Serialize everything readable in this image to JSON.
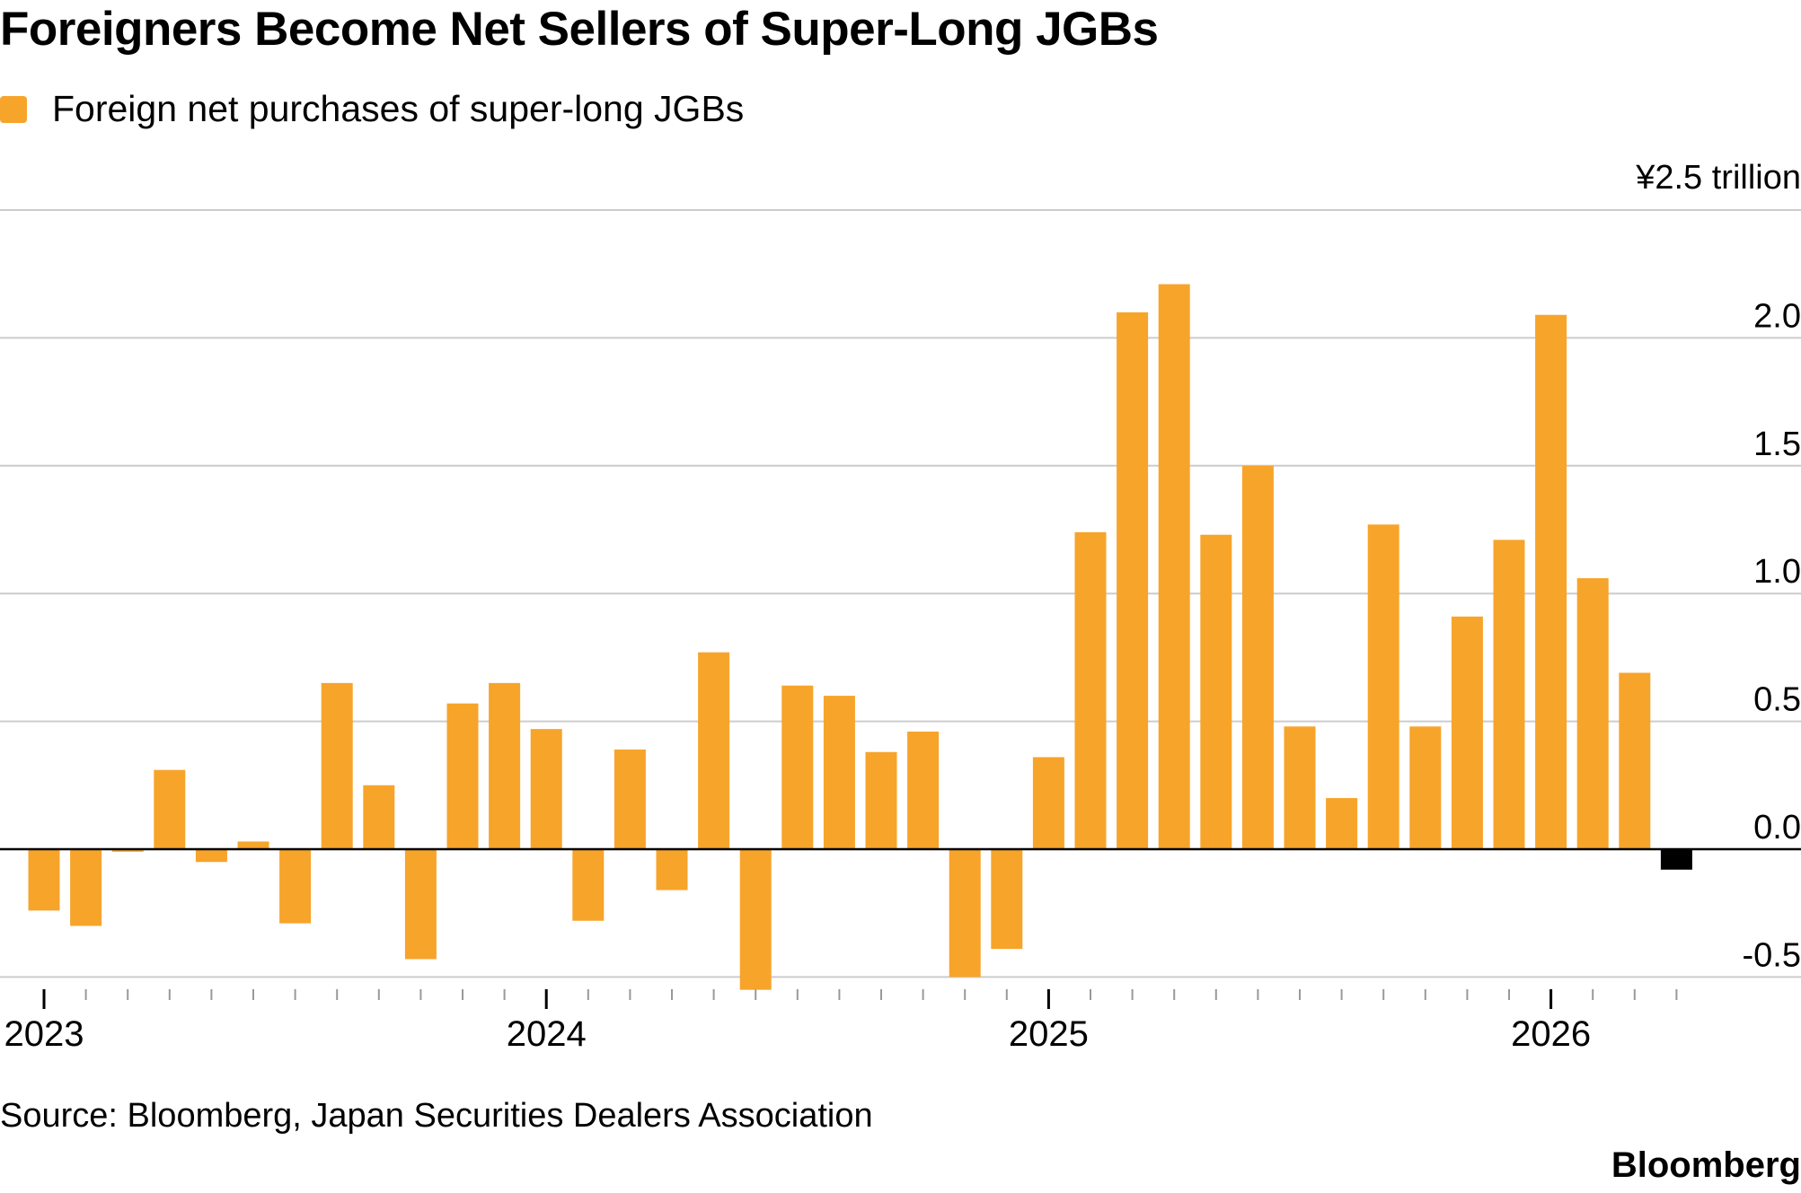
{
  "title": "Foreigners Become Net Sellers of Super-Long JGBs",
  "source": "Source: Bloomberg, Japan Securities Dealers Association",
  "brand": "Bloomberg",
  "colors": {
    "bar": "#F7A42B",
    "latest_bar": "#000000",
    "grid": "#cccccc",
    "zero_line": "#000000"
  },
  "chart_data": {
    "type": "bar",
    "legend": [
      {
        "name": "Foreign net purchases of super-long JGBs",
        "color": "#F7A42B"
      }
    ],
    "legend_position": "top-left",
    "unit_label": "¥2.5 trillion",
    "y_axis_side": "right",
    "ylim": [
      -0.5,
      2.5
    ],
    "y_ticks": [
      "2.0",
      "1.5",
      "1.0",
      "0.5",
      "0.0",
      "-0.5"
    ],
    "y_tick_values": [
      2.0,
      1.5,
      1.0,
      0.5,
      0.0,
      -0.5
    ],
    "grid": true,
    "x_year_labels": [
      "2023",
      "2024",
      "2025",
      "2026"
    ],
    "x_year_start_index": [
      0,
      12,
      24,
      36
    ],
    "x_frequency": "monthly",
    "series": [
      {
        "name": "Foreign net purchases of super-long JGBs",
        "values": [
          -0.24,
          -0.3,
          -0.01,
          0.31,
          -0.05,
          0.03,
          -0.29,
          0.65,
          0.25,
          -0.43,
          0.57,
          0.65,
          0.47,
          -0.28,
          0.39,
          -0.16,
          0.77,
          -0.55,
          0.64,
          0.6,
          0.38,
          0.46,
          -0.5,
          -0.39,
          0.36,
          1.24,
          2.1,
          2.21,
          1.23,
          1.5,
          0.48,
          0.2,
          1.27,
          0.48,
          0.91,
          1.21,
          2.09,
          1.06,
          0.69,
          -0.08
        ]
      }
    ]
  }
}
